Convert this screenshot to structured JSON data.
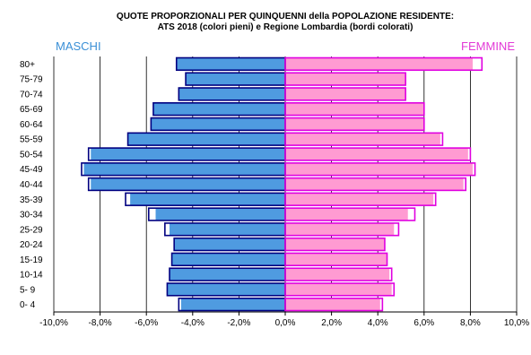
{
  "chart_data": {
    "type": "bar",
    "title_lines": [
      "QUOTE PROPORZIONALI PER QUINQUENNI della POPOLAZIONE RESIDENTE:",
      "ATS 2018 (colori pieni) e Regione Lombardia (bordi colorati)"
    ],
    "left_label": "MASCHI",
    "right_label": "FEMMINE",
    "categories": [
      "80+",
      "75-79",
      "70-74",
      "65-69",
      "60-64",
      "55-59",
      "50-54",
      "45-49",
      "40-44",
      "35-39",
      "30-34",
      "25-29",
      "20-24",
      "15-19",
      "10-14",
      "5- 9",
      "0- 4"
    ],
    "x_ticks": [
      "-10,0%",
      "-8,0%",
      "-6,0%",
      "-4,0%",
      "-2,0%",
      "0,0%",
      "2,0%",
      "4,0%",
      "6,0%",
      "8,0%",
      "10,0%"
    ],
    "x_tick_values": [
      -10,
      -8,
      -6,
      -4,
      -2,
      0,
      2,
      4,
      6,
      8,
      10
    ],
    "xlim": [
      -10,
      10
    ],
    "grid": "vertical",
    "series": [
      {
        "name": "MASCHI",
        "values": [
          -4.7,
          -4.3,
          -4.6,
          -5.7,
          -5.8,
          -6.8,
          -8.4,
          -8.7,
          -8.4,
          -6.7,
          -5.6,
          -5.0,
          -4.8,
          -4.9,
          -5.0,
          -5.1,
          -4.5
        ]
      },
      {
        "name": "FEMMINE",
        "values": [
          8.1,
          5.2,
          5.2,
          6.0,
          6.0,
          6.7,
          7.9,
          8.1,
          7.7,
          6.4,
          5.3,
          4.7,
          4.3,
          4.4,
          4.5,
          4.6,
          4.1
        ]
      }
    ],
    "region_outline": {
      "male": [
        -4.7,
        -4.3,
        -4.6,
        -5.7,
        -5.8,
        -6.8,
        -8.5,
        -8.8,
        -8.5,
        -6.9,
        -5.9,
        -5.2,
        -4.8,
        -4.9,
        -5.0,
        -5.1,
        -4.6
      ],
      "female": [
        8.5,
        5.2,
        5.2,
        6.0,
        6.0,
        6.8,
        8.0,
        8.2,
        7.8,
        6.5,
        5.6,
        4.9,
        4.3,
        4.4,
        4.6,
        4.7,
        4.2
      ]
    },
    "colors": {
      "male_fill": "#4f9be0",
      "male_outline": "#000080",
      "female_fill": "#ff9bd2",
      "female_outline": "#e000e0",
      "male_label": "#3a8fd6",
      "female_label": "#e23ad6",
      "grid": "#000000"
    }
  }
}
